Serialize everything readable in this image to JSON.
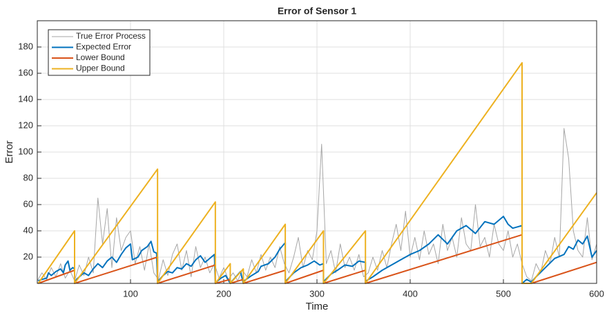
{
  "chart_data": {
    "type": "line",
    "title": "Error of Sensor 1",
    "x_label": "Time",
    "y_label": "Error",
    "xlim": [
      0,
      600
    ],
    "ylim": [
      0,
      200
    ],
    "xticks": [
      100,
      200,
      300,
      400,
      500,
      600
    ],
    "yticks": [
      20,
      40,
      60,
      80,
      100,
      120,
      140,
      160,
      180
    ],
    "grid": true,
    "legend": "upper-left",
    "series": [
      {
        "name": "True Error Process",
        "color": "#a6a6a6",
        "width": 1,
        "x": [
          0,
          5,
          10,
          15,
          20,
          25,
          30,
          35,
          40,
          45,
          50,
          55,
          60,
          65,
          70,
          75,
          80,
          85,
          90,
          95,
          100,
          105,
          110,
          115,
          120,
          125,
          130,
          135,
          140,
          145,
          150,
          155,
          160,
          165,
          170,
          175,
          180,
          185,
          190,
          195,
          200,
          205,
          210,
          215,
          220,
          225,
          230,
          235,
          240,
          245,
          250,
          255,
          260,
          265,
          270,
          275,
          280,
          285,
          290,
          295,
          300,
          305,
          310,
          315,
          320,
          325,
          330,
          335,
          340,
          345,
          350,
          355,
          360,
          365,
          370,
          375,
          380,
          385,
          390,
          395,
          400,
          405,
          410,
          415,
          420,
          425,
          430,
          435,
          440,
          445,
          450,
          455,
          460,
          465,
          470,
          475,
          480,
          485,
          490,
          495,
          500,
          505,
          510,
          515,
          520,
          525,
          530,
          535,
          540,
          545,
          550,
          555,
          560,
          565,
          570,
          575,
          580,
          585,
          590,
          595,
          600
        ],
        "values": [
          2,
          8,
          3,
          12,
          5,
          15,
          4,
          10,
          2,
          14,
          6,
          20,
          8,
          65,
          30,
          57,
          12,
          50,
          25,
          35,
          40,
          15,
          28,
          10,
          30,
          8,
          3,
          18,
          6,
          22,
          30,
          10,
          25,
          5,
          28,
          12,
          20,
          8,
          15,
          4,
          12,
          3,
          8,
          2,
          10,
          5,
          18,
          8,
          22,
          10,
          20,
          12,
          28,
          15,
          8,
          20,
          35,
          12,
          25,
          18,
          40,
          106,
          15,
          25,
          8,
          30,
          12,
          20,
          10,
          22,
          5,
          8,
          20,
          10,
          25,
          12,
          30,
          45,
          25,
          55,
          20,
          35,
          18,
          40,
          22,
          30,
          15,
          45,
          25,
          35,
          20,
          50,
          30,
          25,
          60,
          28,
          35,
          20,
          45,
          30,
          25,
          40,
          20,
          30,
          15,
          5,
          2,
          15,
          8,
          25,
          15,
          35,
          20,
          118,
          95,
          40,
          25,
          20,
          50,
          18,
          30
        ]
      },
      {
        "name": "Expected Error",
        "color": "#0072bd",
        "width": 2,
        "x": [
          1,
          5,
          10,
          12,
          15,
          20,
          25,
          28,
          30,
          33,
          35,
          38,
          40,
          40,
          42,
          50,
          55,
          60,
          65,
          70,
          75,
          80,
          85,
          90,
          95,
          100,
          102,
          108,
          112,
          118,
          122,
          125,
          128,
          129,
          130,
          135,
          140,
          145,
          150,
          155,
          160,
          165,
          170,
          175,
          180,
          185,
          190,
          191,
          192,
          197,
          202,
          207,
          208,
          213,
          218,
          221,
          222,
          230,
          237,
          240,
          248,
          255,
          260,
          266,
          266,
          267,
          275,
          283,
          290,
          297,
          303,
          307,
          307,
          308,
          315,
          322,
          330,
          338,
          345,
          352,
          352,
          353,
          360,
          370,
          380,
          390,
          400,
          410,
          420,
          430,
          440,
          450,
          460,
          470,
          480,
          490,
          500,
          505,
          510,
          515,
          520,
          520,
          525,
          530,
          535,
          545,
          555,
          565,
          570,
          575,
          580,
          585,
          590,
          595,
          600
        ],
        "values": [
          2,
          3,
          4,
          8,
          6,
          9,
          11,
          8,
          14,
          17,
          10,
          12,
          11,
          0,
          3,
          8,
          6,
          11,
          15,
          12,
          17,
          20,
          16,
          22,
          27,
          30,
          18,
          20,
          25,
          28,
          32,
          24,
          23,
          0,
          2,
          6,
          9,
          8,
          12,
          11,
          15,
          13,
          18,
          21,
          16,
          19,
          22,
          0,
          1,
          4,
          6,
          0,
          1,
          5,
          9,
          0,
          2,
          6,
          9,
          13,
          15,
          20,
          26,
          31,
          0,
          2,
          8,
          12,
          14,
          17,
          14,
          15,
          0,
          2,
          7,
          10,
          14,
          13,
          17,
          16,
          0,
          2,
          5,
          10,
          14,
          18,
          22,
          25,
          30,
          37,
          30,
          40,
          44,
          38,
          47,
          45,
          51,
          45,
          42,
          43,
          44,
          0,
          3,
          1,
          5,
          12,
          19,
          22,
          28,
          26,
          33,
          30,
          36,
          20,
          25
        ]
      },
      {
        "name": "Lower Bound",
        "color": "#d95319",
        "width": 2,
        "x": [
          1,
          40,
          40,
          129,
          129,
          191,
          191,
          207,
          207,
          221,
          221,
          266,
          266,
          307,
          307,
          352,
          352,
          520,
          520,
          530,
          600
        ],
        "values": [
          0,
          10,
          0,
          20,
          0,
          14,
          0,
          3,
          0,
          3,
          0,
          10,
          0,
          10,
          0,
          10,
          0,
          37,
          0,
          0,
          16
        ]
      },
      {
        "name": "Upper Bound",
        "color": "#edb120",
        "width": 2,
        "x": [
          1,
          40,
          40,
          129,
          129,
          191,
          191,
          207,
          207,
          221,
          221,
          266,
          266,
          307,
          307,
          352,
          352,
          520,
          520,
          530,
          600
        ],
        "values": [
          0,
          40,
          0,
          87,
          0,
          62,
          0,
          15,
          0,
          11,
          0,
          45,
          0,
          40,
          0,
          40,
          0,
          168,
          0,
          0,
          69
        ]
      }
    ]
  }
}
